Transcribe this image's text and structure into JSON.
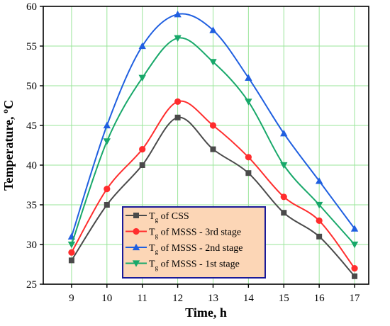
{
  "chart_data": {
    "type": "line",
    "title": "",
    "xlabel": "Time, h",
    "ylabel": "Temperature, °C",
    "ylabel_parts": {
      "main": "Temperature, ",
      "sup": "o",
      "unit": "C"
    },
    "x": [
      9,
      10,
      11,
      12,
      13,
      14,
      15,
      16,
      17
    ],
    "xlim": [
      8.2,
      17.4
    ],
    "ylim": [
      25,
      60
    ],
    "x_ticks": [
      9,
      10,
      11,
      12,
      13,
      14,
      15,
      16,
      17
    ],
    "y_ticks": [
      25,
      30,
      35,
      40,
      45,
      50,
      55,
      60
    ],
    "grid": true,
    "legend_position": "bottom-center",
    "series": [
      {
        "name": "Tg of CSS",
        "label_main": "T",
        "label_sub": "g",
        "label_rest": " of CSS",
        "color": "#4a4a4a",
        "marker": "square",
        "values": [
          28,
          35,
          40,
          46,
          42,
          39,
          34,
          31,
          26
        ]
      },
      {
        "name": "Tg of MSSS - 3rd stage",
        "label_main": "T",
        "label_sub": "g",
        "label_rest": " of MSSS - 3rd stage",
        "color": "#ff2d2d",
        "marker": "circle",
        "values": [
          29,
          37,
          42,
          48,
          45,
          41,
          36,
          33,
          27
        ]
      },
      {
        "name": "Tg of MSSS - 2nd stage",
        "label_main": "T",
        "label_sub": "g",
        "label_rest": " of MSSS - 2nd stage",
        "color": "#1f5fe0",
        "marker": "triangle-up",
        "values": [
          31,
          45,
          55,
          59,
          57,
          51,
          44,
          38,
          32
        ]
      },
      {
        "name": "Tg of MSSS - 1st stage",
        "label_main": "T",
        "label_sub": "g",
        "label_rest": " of MSSS - 1st stage",
        "color": "#18a86a",
        "marker": "triangle-down",
        "values": [
          30,
          43,
          51,
          56,
          53,
          48,
          40,
          35,
          30
        ]
      }
    ],
    "colors": {
      "grid": "#9ae59a",
      "legend_fill": "#fcd6b6",
      "legend_border": "#1a1a99"
    }
  }
}
